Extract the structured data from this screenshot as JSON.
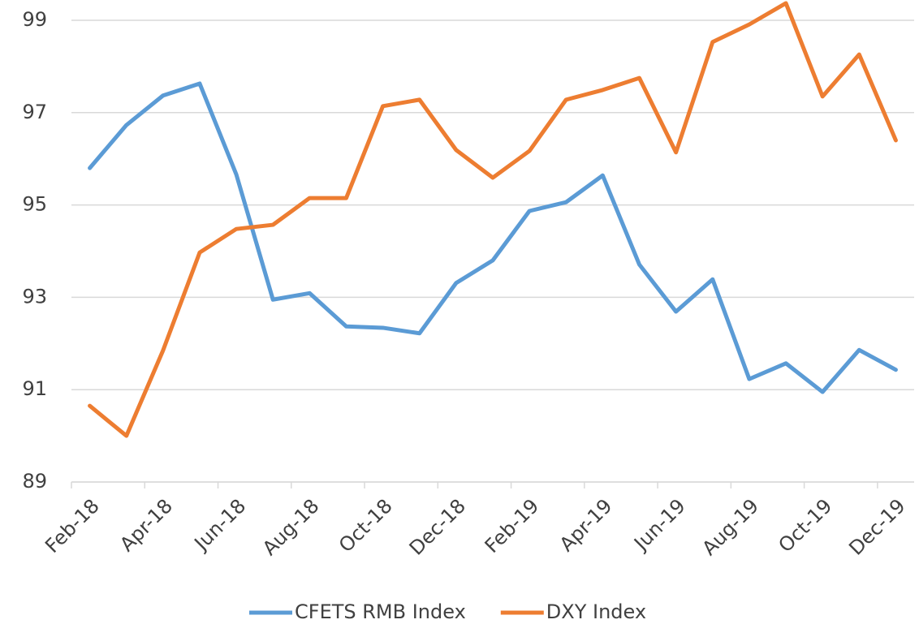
{
  "chart_data": {
    "type": "line",
    "categories": [
      "Feb-18",
      null,
      "Apr-18",
      null,
      "Jun-18",
      null,
      "Aug-18",
      null,
      "Oct-18",
      null,
      "Dec-18",
      null,
      "Feb-19",
      null,
      "Apr-19",
      null,
      "Jun-19",
      null,
      "Aug-19",
      null,
      "Oct-19",
      null,
      "Dec-19"
    ],
    "series": [
      {
        "name": "CFETS RMB Index",
        "color": "#5b9bd5",
        "values": [
          95.8,
          96.73,
          97.37,
          97.63,
          95.66,
          92.95,
          93.09,
          92.37,
          92.34,
          92.22,
          93.31,
          93.8,
          94.87,
          95.06,
          95.64,
          93.71,
          92.69,
          93.39,
          91.23,
          91.57,
          90.95,
          91.86,
          91.43
        ]
      },
      {
        "name": "DXY Index",
        "color": "#ed7d31",
        "values": [
          90.65,
          90.0,
          91.85,
          93.97,
          94.48,
          94.57,
          95.15,
          95.15,
          97.14,
          97.28,
          96.19,
          95.59,
          96.17,
          97.28,
          97.49,
          97.75,
          96.14,
          98.53,
          98.91,
          99.37,
          97.35,
          98.26,
          96.4
        ]
      }
    ],
    "ylim": [
      89,
      99.4
    ],
    "yticks": [
      89,
      91,
      93,
      95,
      97,
      99
    ],
    "grid": true,
    "legend": "bottom"
  }
}
